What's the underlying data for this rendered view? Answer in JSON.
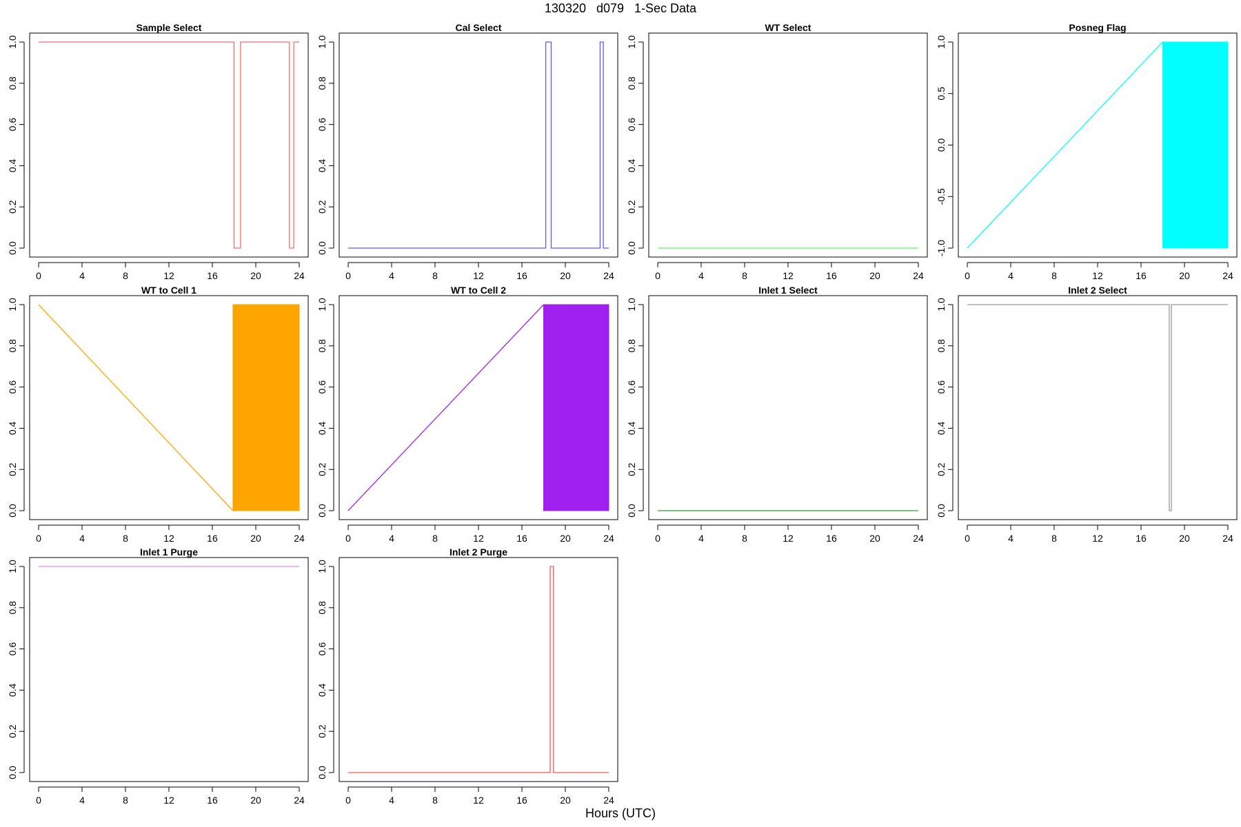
{
  "figure": {
    "title": "130320   d079   1-Sec Data",
    "xlabel": "Hours (UTC)"
  },
  "chart_data": [
    {
      "type": "line",
      "title": "Sample Select",
      "color": "#ff6b6b",
      "xlim": [
        0,
        24
      ],
      "ylim": [
        0,
        1
      ],
      "xticks": [
        0,
        4,
        8,
        12,
        16,
        20,
        24
      ],
      "yticks": [
        0.0,
        0.2,
        0.4,
        0.6,
        0.8,
        1.0
      ],
      "ytick_labels": [
        "0.0",
        "0.2",
        "0.4",
        "0.6",
        "0.8",
        "1.0"
      ],
      "x": [
        0,
        18.0,
        18.0,
        18.6,
        18.6,
        23.1,
        23.1,
        23.5,
        23.5,
        24
      ],
      "y": [
        1,
        1,
        0,
        0,
        1,
        1,
        0,
        0,
        1,
        1
      ]
    },
    {
      "type": "line",
      "title": "Cal Select",
      "color": "#5b5bff",
      "xlim": [
        0,
        24
      ],
      "ylim": [
        0,
        1
      ],
      "xticks": [
        0,
        4,
        8,
        12,
        16,
        20,
        24
      ],
      "yticks": [
        0.0,
        0.2,
        0.4,
        0.6,
        0.8,
        1.0
      ],
      "ytick_labels": [
        "0.0",
        "0.2",
        "0.4",
        "0.6",
        "0.8",
        "1.0"
      ],
      "x": [
        0,
        18.2,
        18.2,
        18.7,
        18.7,
        23.2,
        23.2,
        23.5,
        23.5,
        24
      ],
      "y": [
        0,
        0,
        1,
        1,
        0,
        0,
        1,
        1,
        0,
        0
      ]
    },
    {
      "type": "line",
      "title": "WT Select",
      "color": "#66ee66",
      "xlim": [
        0,
        24
      ],
      "ylim": [
        0,
        1
      ],
      "xticks": [
        0,
        4,
        8,
        12,
        16,
        20,
        24
      ],
      "yticks": [
        0.0,
        0.2,
        0.4,
        0.6,
        0.8,
        1.0
      ],
      "ytick_labels": [
        "0.0",
        "0.2",
        "0.4",
        "0.6",
        "0.8",
        "1.0"
      ],
      "x": [
        0,
        24
      ],
      "y": [
        0,
        0
      ]
    },
    {
      "type": "line",
      "title": "Posneg Flag",
      "color": "#00ffff",
      "xlim": [
        0,
        24
      ],
      "ylim": [
        -1,
        1
      ],
      "xticks": [
        0,
        4,
        8,
        12,
        16,
        20,
        24
      ],
      "yticks": [
        -1.0,
        -0.5,
        0.0,
        0.5,
        1.0
      ],
      "ytick_labels": [
        "-1.0",
        "-0.5",
        "0.0",
        "0.5",
        "1.0"
      ],
      "x": [
        0,
        18.0
      ],
      "y": [
        -1,
        1
      ],
      "band": {
        "x0": 18.0,
        "x1": 24,
        "y0": -1,
        "y1": 1
      }
    },
    {
      "type": "line",
      "title": "WT to Cell 1",
      "color": "#ffa500",
      "xlim": [
        0,
        24
      ],
      "ylim": [
        0,
        1
      ],
      "xticks": [
        0,
        4,
        8,
        12,
        16,
        20,
        24
      ],
      "yticks": [
        0.0,
        0.2,
        0.4,
        0.6,
        0.8,
        1.0
      ],
      "ytick_labels": [
        "0.0",
        "0.2",
        "0.4",
        "0.6",
        "0.8",
        "1.0"
      ],
      "x": [
        0,
        17.9
      ],
      "y": [
        1,
        0
      ],
      "band": {
        "x0": 17.9,
        "x1": 24,
        "y0": 0,
        "y1": 1
      }
    },
    {
      "type": "line",
      "title": "WT to Cell 2",
      "color": "#a020f0",
      "xlim": [
        0,
        24
      ],
      "ylim": [
        0,
        1
      ],
      "xticks": [
        0,
        4,
        8,
        12,
        16,
        20,
        24
      ],
      "yticks": [
        0.0,
        0.2,
        0.4,
        0.6,
        0.8,
        1.0
      ],
      "ytick_labels": [
        "0.0",
        "0.2",
        "0.4",
        "0.6",
        "0.8",
        "1.0"
      ],
      "x": [
        0,
        18.0
      ],
      "y": [
        0,
        1
      ],
      "band": {
        "x0": 18.0,
        "x1": 24,
        "y0": 0,
        "y1": 1
      }
    },
    {
      "type": "line",
      "title": "Inlet 1 Select",
      "color": "#339933",
      "xlim": [
        0,
        24
      ],
      "ylim": [
        0,
        1
      ],
      "xticks": [
        0,
        4,
        8,
        12,
        16,
        20,
        24
      ],
      "yticks": [
        0.0,
        0.2,
        0.4,
        0.6,
        0.8,
        1.0
      ],
      "ytick_labels": [
        "0.0",
        "0.2",
        "0.4",
        "0.6",
        "0.8",
        "1.0"
      ],
      "x": [
        0,
        24
      ],
      "y": [
        0,
        0
      ]
    },
    {
      "type": "line",
      "title": "Inlet 2 Select",
      "color": "#999999",
      "xlim": [
        0,
        24
      ],
      "ylim": [
        0,
        1
      ],
      "xticks": [
        0,
        4,
        8,
        12,
        16,
        20,
        24
      ],
      "yticks": [
        0.0,
        0.2,
        0.4,
        0.6,
        0.8,
        1.0
      ],
      "ytick_labels": [
        "0.0",
        "0.2",
        "0.4",
        "0.6",
        "0.8",
        "1.0"
      ],
      "x": [
        0,
        18.6,
        18.6,
        18.8,
        18.8,
        24
      ],
      "y": [
        1,
        1,
        0,
        0,
        1,
        1
      ]
    },
    {
      "type": "line",
      "title": "Inlet 1 Purge",
      "color": "#ee82ee",
      "xlim": [
        0,
        24
      ],
      "ylim": [
        0,
        1
      ],
      "xticks": [
        0,
        4,
        8,
        12,
        16,
        20,
        24
      ],
      "yticks": [
        0.0,
        0.2,
        0.4,
        0.6,
        0.8,
        1.0
      ],
      "ytick_labels": [
        "0.0",
        "0.2",
        "0.4",
        "0.6",
        "0.8",
        "1.0"
      ],
      "x": [
        0,
        24
      ],
      "y": [
        1,
        1
      ]
    },
    {
      "type": "line",
      "title": "Inlet 2 Purge",
      "color": "#ff5555",
      "xlim": [
        0,
        24
      ],
      "ylim": [
        0,
        1
      ],
      "xticks": [
        0,
        4,
        8,
        12,
        16,
        20,
        24
      ],
      "yticks": [
        0.0,
        0.2,
        0.4,
        0.6,
        0.8,
        1.0
      ],
      "ytick_labels": [
        "0.0",
        "0.2",
        "0.4",
        "0.6",
        "0.8",
        "1.0"
      ],
      "x": [
        0,
        18.6,
        18.6,
        18.9,
        18.9,
        24
      ],
      "y": [
        0,
        0,
        1,
        1,
        0,
        0
      ]
    }
  ]
}
